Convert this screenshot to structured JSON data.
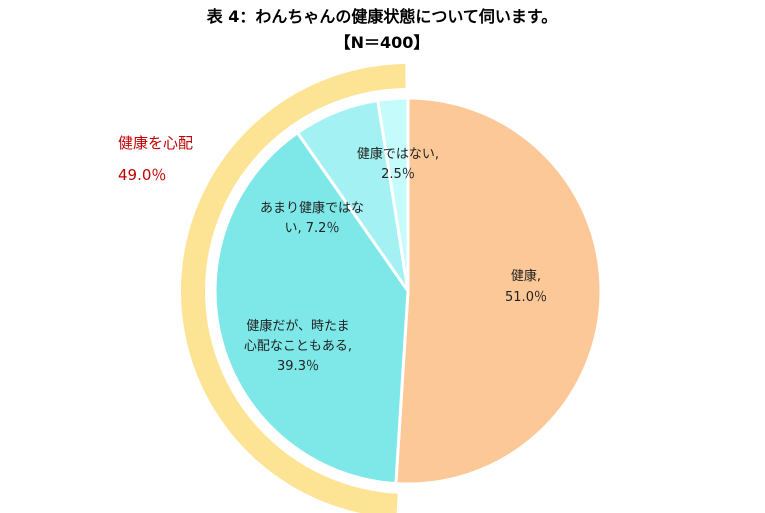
{
  "chart_data": {
    "type": "pie",
    "title": "表 4：わんちゃんの健康状態について伺います。",
    "subtitle": "【N＝400】",
    "slices": [
      {
        "label": "健康,",
        "value_label": "51.0％",
        "value": 51.0,
        "color": "#fdc898"
      },
      {
        "label": "健康だが、時たま心配なこともある,",
        "value_label": "39.3％",
        "value": 39.3,
        "color": "#7ee8e9"
      },
      {
        "label": "あまり健康ではない,",
        "value_label": "7.2％",
        "value": 7.2,
        "color": "#a3f1f3"
      },
      {
        "label": "健康ではない,",
        "value_label": "2.5％",
        "value": 2.5,
        "color": "#c6fbfc"
      }
    ],
    "group": {
      "label": "健康を心配",
      "value_label": "49.0％",
      "value": 49.0,
      "color": "#fde394",
      "label_color": "#c00000"
    }
  }
}
